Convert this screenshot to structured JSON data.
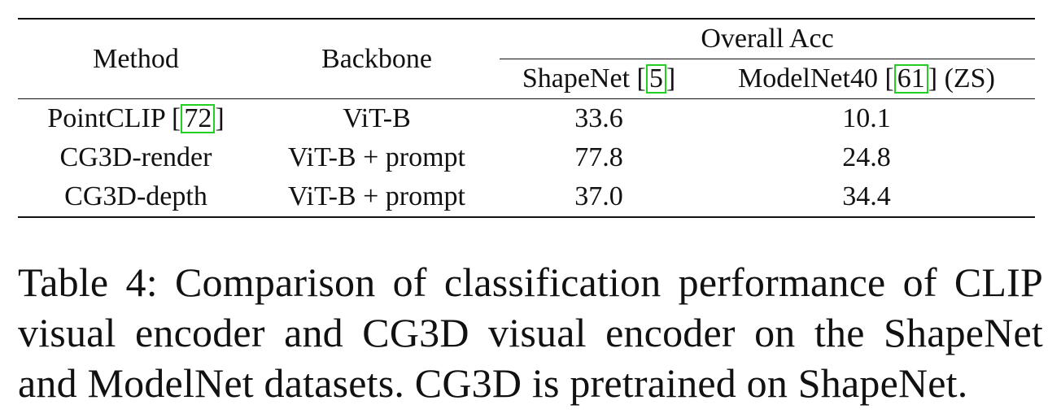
{
  "table": {
    "headers": {
      "method": "Method",
      "backbone": "Backbone",
      "group": "Overall Acc",
      "shapenet": "ShapeNet",
      "shapenet_cite": "5",
      "modelnet": "ModelNet40",
      "modelnet_cite": "61",
      "modelnet_suffix": "(ZS)"
    },
    "rows": [
      {
        "method": "PointCLIP",
        "cite": "72",
        "backbone": "ViT-B",
        "shapenet": "33.6",
        "modelnet": "10.1"
      },
      {
        "method": "CG3D-render",
        "cite": "",
        "backbone": "ViT-B + prompt",
        "shapenet": "77.8",
        "modelnet": "24.8"
      },
      {
        "method": "CG3D-depth",
        "cite": "",
        "backbone": "ViT-B + prompt",
        "shapenet": "37.0",
        "modelnet": "34.4"
      }
    ]
  },
  "caption": {
    "line1": "Table 4: Comparison of classification performance of CLIP",
    "line2": "visual encoder and CG3D visual encoder on the ShapeNet",
    "line3": "and ModelNet datasets. CG3D is pretrained on ShapeNet."
  },
  "colors": {
    "citation_box": "#22d022",
    "text": "#111111"
  }
}
